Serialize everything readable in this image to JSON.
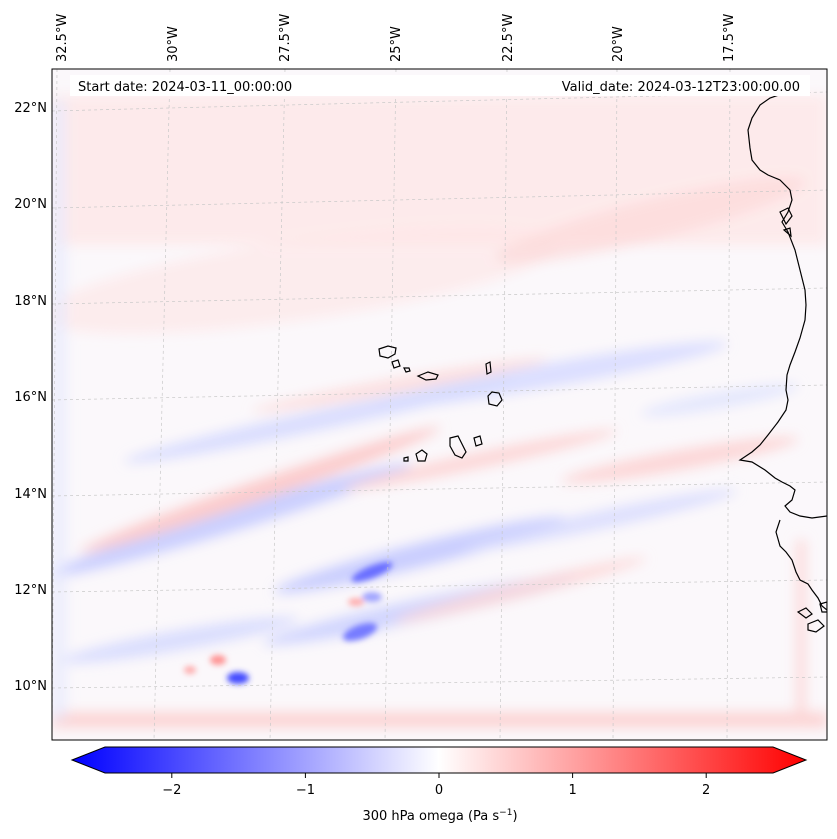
{
  "map": {
    "start_date": "Start date: 2024-03-11_00:00:00",
    "valid_date": "Valid_date: 2024-03-12T23:00:00.00",
    "lon_labels": [
      "32.5°W",
      "30°W",
      "27.5°W",
      "25°W",
      "22.5°W",
      "20°W",
      "17.5°W"
    ],
    "lat_labels": [
      "22°N",
      "20°N",
      "18°N",
      "16°N",
      "14°N",
      "12°N",
      "10°N"
    ],
    "colors": {
      "negative": "#0000ff",
      "positive": "#ff0000",
      "neutral": "#ffffff",
      "coastline": "#000000",
      "grid": "#c8c8c8"
    }
  },
  "colorbar": {
    "title": "300 hPa omega (Pa s",
    "title_exp": "−1",
    "title_end": ")",
    "ticks": [
      "−2",
      "−1",
      "0",
      "1",
      "2"
    ],
    "values": [
      -2,
      -1,
      0,
      1,
      2
    ],
    "range": [
      -2.6,
      2.6
    ]
  }
}
